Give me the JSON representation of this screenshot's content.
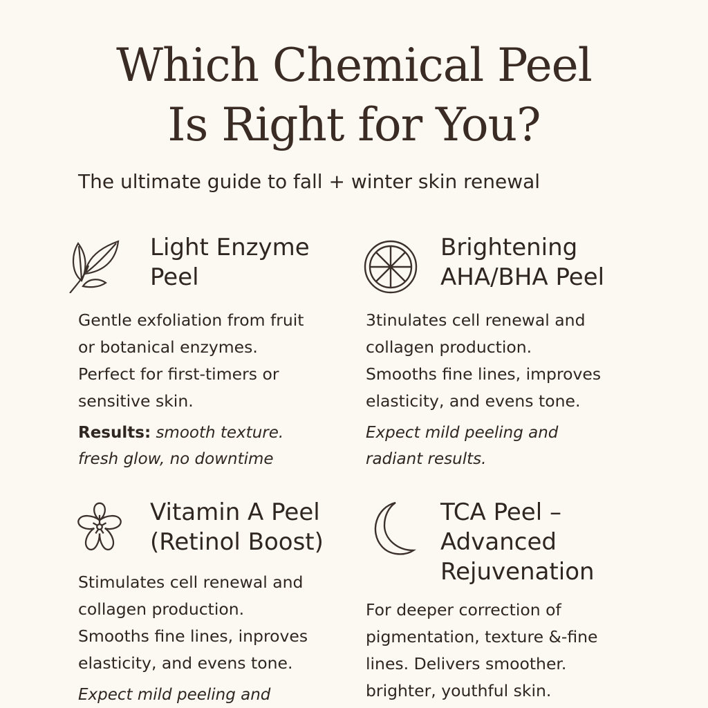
{
  "title": {
    "line1": "Which Chemical Peel",
    "line2": "Is Right for You?"
  },
  "subtitle": "The ultimate guide to fall + winter skin renewal",
  "colors": {
    "background": "#fcf9f3",
    "text": "#3b302a"
  },
  "peels": [
    {
      "icon": "leaf-icon",
      "heading": [
        "Light Enzyme",
        "Peel"
      ],
      "body": [
        "Gentle exfoliation from fruit",
        "or botanical enzymes.",
        "Perfect for first-timers or",
        "sensitive skin."
      ],
      "results_label": "Results:",
      "note": [
        "smooth texture.",
        "fresh glow, no downtime"
      ]
    },
    {
      "icon": "citrus-slice-icon",
      "heading": [
        "Brightening",
        "AHA/BHA Peel"
      ],
      "body": [
        "3tinulates cell renewal and",
        "collagen production.",
        "Smooths fine lines, improves",
        "elasticity, and evens tone."
      ],
      "note": [
        "Expect mild peeling and",
        "radiant results."
      ]
    },
    {
      "icon": "flower-icon",
      "heading": [
        "Vitamin A Peel",
        "(Retinol Boost)"
      ],
      "body": [
        "Stimulates cell renewal and",
        "collagen production.",
        "Smooths fine lines, inproves",
        "elasticity, and evens tone."
      ],
      "note": [
        "Expect mild peeling and"
      ]
    },
    {
      "icon": "crescent-moon-icon",
      "heading": [
        "TCA Peel –",
        "Advanced",
        "Rejuvenation"
      ],
      "body": [
        "For deeper correction of",
        "pigmentation, texture  &-fine",
        "lines. Delivers smoother.",
        "brighter, youthful skin."
      ]
    }
  ]
}
